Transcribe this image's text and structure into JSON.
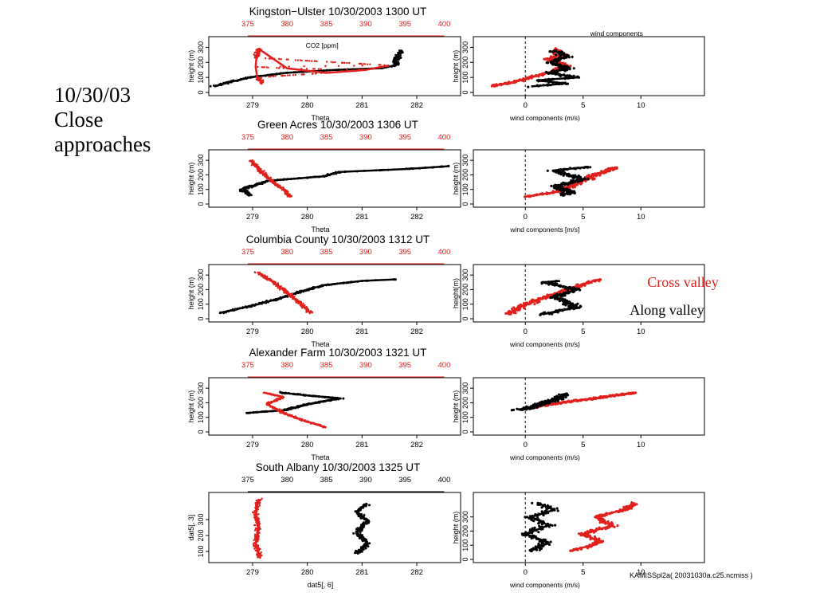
{
  "slide_title": [
    "10/30/03",
    "Close",
    "approaches"
  ],
  "footer_note": "KAMISSpl2a( 20031030a.c25.ncmiss )",
  "colors": {
    "theta": "#000000",
    "co2": "#e0201c",
    "along": "#000000",
    "cross": "#e0201c"
  },
  "chart_data": [
    {
      "type": "scatter",
      "title": "Kingston−Ulster 10/30/2003 1300 UT",
      "co2_axis": {
        "label": "CO2 [ppm]",
        "ticks": [
          "375",
          "380",
          "385",
          "390",
          "395",
          "400"
        ],
        "range": [
          375,
          400
        ],
        "color": "#e0201c"
      },
      "xlabel": "Theta",
      "ylabel": "height (m)",
      "xlim": [
        278.2,
        282.8
      ],
      "ylim": [
        0,
        350
      ],
      "xticks": [
        "279",
        "280",
        "281",
        "282"
      ],
      "yticks": [
        "0",
        "100",
        "200",
        "300"
      ],
      "theta_profile": [
        [
          278.3,
          40
        ],
        [
          278.6,
          70
        ],
        [
          278.95,
          100
        ],
        [
          279.6,
          130
        ],
        [
          280.5,
          150
        ],
        [
          281.3,
          160
        ],
        [
          281.6,
          180
        ],
        [
          281.7,
          280
        ]
      ],
      "co2_profile": [
        [
          376.8,
          60
        ],
        [
          376.2,
          100
        ],
        [
          376.0,
          170
        ],
        [
          376.1,
          230
        ],
        [
          376.4,
          290
        ],
        [
          380,
          160
        ],
        [
          385,
          130
        ],
        [
          390,
          150
        ],
        [
          393,
          180
        ]
      ],
      "wind": {
        "title": "wind components",
        "xlabel": "wind components (m/s)",
        "ylabel": "height (m)",
        "xlim": [
          -4.5,
          15.5
        ],
        "ylim": [
          0,
          350
        ],
        "xticks": [
          "0",
          "5",
          "10"
        ],
        "yticks": [
          "0",
          "100",
          "200",
          "300"
        ],
        "along_profile": [
          [
            0.5,
            40
          ],
          [
            3.5,
            60
          ],
          [
            1.0,
            80
          ],
          [
            4.5,
            100
          ],
          [
            2.0,
            130
          ],
          [
            3.8,
            160
          ],
          [
            2.2,
            200
          ],
          [
            3.6,
            240
          ],
          [
            2.4,
            280
          ]
        ],
        "cross_profile": [
          [
            -3.0,
            40
          ],
          [
            -1.0,
            70
          ],
          [
            0.5,
            100
          ],
          [
            2.5,
            140
          ],
          [
            3.5,
            180
          ],
          [
            2.0,
            220
          ],
          [
            3.0,
            250
          ],
          [
            2.5,
            290
          ]
        ]
      }
    },
    {
      "type": "scatter",
      "title": "Green Acres 10/30/2003 1306 UT",
      "co2_axis": {
        "ticks": [
          "375",
          "380",
          "385",
          "390",
          "395",
          "400"
        ],
        "range": [
          375,
          400
        ],
        "color": "#e0201c"
      },
      "xlabel": "Theta",
      "ylabel": "height (m)",
      "xlim": [
        278.2,
        282.8
      ],
      "ylim": [
        0,
        350
      ],
      "xticks": [
        "279",
        "280",
        "281",
        "282"
      ],
      "yticks": [
        "0",
        "100",
        "200",
        "300"
      ],
      "theta_profile": [
        [
          278.95,
          60
        ],
        [
          278.8,
          100
        ],
        [
          279.3,
          160
        ],
        [
          280.3,
          190
        ],
        [
          280.6,
          220
        ],
        [
          281.8,
          240
        ],
        [
          282.6,
          260
        ]
      ],
      "co2_profile": [
        [
          380.3,
          50
        ],
        [
          379.8,
          90
        ],
        [
          378.5,
          140
        ],
        [
          377.2,
          200
        ],
        [
          376.0,
          260
        ],
        [
          375.4,
          300
        ]
      ],
      "wind": {
        "xlabel": "wind components [m/s]",
        "ylabel": "height (m)",
        "xlim": [
          -4.5,
          15.5
        ],
        "ylim": [
          0,
          350
        ],
        "xticks": [
          "0",
          "5",
          "10"
        ],
        "yticks": [
          "0",
          "100",
          "200",
          "300"
        ],
        "along_profile": [
          [
            3.0,
            60
          ],
          [
            4.0,
            80
          ],
          [
            2.5,
            120
          ],
          [
            5.0,
            170
          ],
          [
            2.5,
            230
          ],
          [
            5.5,
            255
          ]
        ],
        "cross_profile": [
          [
            0,
            50
          ],
          [
            2.5,
            80
          ],
          [
            4.5,
            140
          ],
          [
            6.0,
            200
          ],
          [
            7.8,
            250
          ]
        ]
      }
    },
    {
      "type": "scatter",
      "title": "Columbia County 10/30/2003 1312 UT",
      "co2_axis": {
        "ticks": [
          "375",
          "380",
          "385",
          "390",
          "395",
          "400"
        ],
        "range": [
          375,
          400
        ],
        "color": "#e0201c"
      },
      "xlabel": "Theta",
      "ylabel": "height (m)",
      "xlim": [
        278.2,
        282.8
      ],
      "ylim": [
        0,
        350
      ],
      "xticks": [
        "279",
        "280",
        "281",
        "282"
      ],
      "yticks": [
        "0",
        "100",
        "200",
        "300"
      ],
      "theta_profile": [
        [
          278.4,
          40
        ],
        [
          279.0,
          90
        ],
        [
          279.5,
          140
        ],
        [
          279.9,
          190
        ],
        [
          280.3,
          230
        ],
        [
          281.0,
          260
        ],
        [
          281.6,
          270
        ]
      ],
      "co2_profile": [
        [
          383.0,
          40
        ],
        [
          381.8,
          100
        ],
        [
          380.2,
          170
        ],
        [
          378.3,
          250
        ],
        [
          376.2,
          320
        ]
      ],
      "wind": {
        "xlabel": "wind components (m/s)",
        "ylabel": "height(m)",
        "xlim": [
          -4.5,
          15.5
        ],
        "ylim": [
          0,
          350
        ],
        "xticks": [
          "0",
          "5",
          "10"
        ],
        "yticks": [
          "0",
          "100",
          "200",
          "300"
        ],
        "along_profile": [
          [
            1.5,
            30
          ],
          [
            4.5,
            80
          ],
          [
            2.5,
            150
          ],
          [
            4.5,
            200
          ],
          [
            1.5,
            250
          ],
          [
            3.0,
            260
          ]
        ],
        "cross_profile": [
          [
            -1.5,
            30
          ],
          [
            -0.5,
            80
          ],
          [
            1.5,
            140
          ],
          [
            3.5,
            200
          ],
          [
            5.5,
            250
          ],
          [
            6.5,
            270
          ]
        ]
      },
      "annotations": {
        "cross": "Cross valley",
        "along": "Along valley"
      }
    },
    {
      "type": "scatter",
      "title": "Alexander Farm 10/30/2003 1321 UT",
      "co2_axis": {
        "ticks": [
          "375",
          "380",
          "385",
          "390",
          "395",
          "400"
        ],
        "range": [
          375,
          400
        ],
        "color": "#e0201c"
      },
      "xlabel": "Theta",
      "ylabel": "height (m)",
      "xlim": [
        278.2,
        282.8
      ],
      "ylim": [
        0,
        350
      ],
      "xticks": [
        "279",
        "280",
        "281",
        "282"
      ],
      "yticks": [
        "0",
        "100",
        "200",
        "300"
      ],
      "theta_profile": [
        [
          278.9,
          130
        ],
        [
          279.6,
          150
        ],
        [
          280.0,
          190
        ],
        [
          280.6,
          230
        ],
        [
          280.0,
          250
        ],
        [
          279.5,
          270
        ]
      ],
      "co2_profile": [
        [
          385,
          30
        ],
        [
          382,
          80
        ],
        [
          379.5,
          130
        ],
        [
          377.5,
          190
        ],
        [
          379.5,
          240
        ],
        [
          377,
          270
        ]
      ],
      "wind": {
        "xlabel": "wind components (m/s)",
        "ylabel": "height (m)",
        "xlim": [
          -4.5,
          15.5
        ],
        "ylim": [
          0,
          350
        ],
        "xticks": [
          "0",
          "5",
          "10"
        ],
        "yticks": [
          "0",
          "100",
          "200",
          "300"
        ],
        "along_profile": [
          [
            -0.5,
            150
          ],
          [
            1.0,
            180
          ],
          [
            2.5,
            220
          ],
          [
            3.5,
            260
          ]
        ],
        "cross_profile": [
          [
            0,
            160
          ],
          [
            3.0,
            200
          ],
          [
            6.0,
            230
          ],
          [
            9.5,
            270
          ]
        ]
      }
    },
    {
      "type": "scatter",
      "title": "South Albany 10/30/2003 1325 UT",
      "co2_axis": {
        "ticks": [
          "375",
          "380",
          "385",
          "390",
          "395",
          "400"
        ],
        "range": [
          375,
          400
        ],
        "color": "#000000"
      },
      "xlabel": "dat5[, 6]",
      "ylabel": "dat5[, 3]",
      "xlim": [
        278.2,
        282.8
      ],
      "ylim": [
        50,
        450
      ],
      "xticks": [
        "279",
        "280",
        "281",
        "282"
      ],
      "yticks": [
        "100",
        "200",
        "300"
      ],
      "theta_profile": [
        [
          280.9,
          90
        ],
        [
          281.1,
          150
        ],
        [
          280.9,
          220
        ],
        [
          281.1,
          290
        ],
        [
          280.9,
          350
        ],
        [
          281.1,
          400
        ]
      ],
      "co2_profile": [
        [
          376.5,
          60
        ],
        [
          376.0,
          150
        ],
        [
          376.3,
          250
        ],
        [
          376.0,
          350
        ],
        [
          376.4,
          430
        ]
      ],
      "wind": {
        "xlabel": "wind components (m/s)",
        "ylabel": "height (m)",
        "xlim": [
          -4.5,
          15.5
        ],
        "ylim": [
          0,
          450
        ],
        "xticks": [
          "0",
          "5",
          "10"
        ],
        "yticks": [
          "0",
          "100",
          "200",
          "300"
        ],
        "along_profile": [
          [
            0.5,
            60
          ],
          [
            2.0,
            120
          ],
          [
            0.0,
            180
          ],
          [
            2.0,
            240
          ],
          [
            0.5,
            300
          ],
          [
            2.5,
            350
          ],
          [
            1.0,
            400
          ]
        ],
        "cross_profile": [
          [
            4.0,
            60
          ],
          [
            6.5,
            120
          ],
          [
            5.0,
            180
          ],
          [
            7.5,
            240
          ],
          [
            6.0,
            300
          ],
          [
            8.5,
            350
          ],
          [
            9.5,
            400
          ]
        ]
      }
    }
  ]
}
